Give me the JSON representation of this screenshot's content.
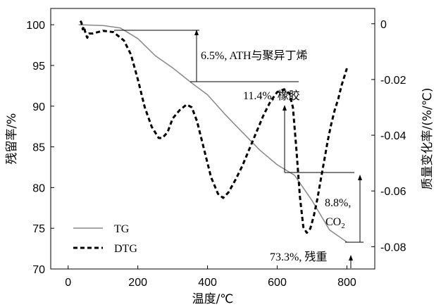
{
  "chart_data": {
    "type": "line",
    "xlabel": "温度/℃",
    "ylabel_left": "残留率/%",
    "ylabel_right": "质量变化率/(%/℃)",
    "xlim": [
      -50,
      880
    ],
    "ylim_left": [
      70,
      102
    ],
    "ylim_right": [
      -0.088,
      0.0055
    ],
    "x_ticks": [
      0,
      200,
      400,
      600,
      800
    ],
    "y_left_ticks": [
      70,
      75,
      80,
      85,
      90,
      95,
      100
    ],
    "y_right_ticks": [
      0,
      -0.02,
      -0.04,
      -0.06,
      -0.08
    ],
    "y_right_tick_labels": [
      "0",
      "-0.02",
      "-0.04",
      "-0.06",
      "-0.08"
    ],
    "grid": false,
    "legend": {
      "position": "bottom-left",
      "entries": [
        {
          "label": "TG",
          "style": "solid",
          "color": "#888888"
        },
        {
          "label": "DTG",
          "style": "dashed",
          "color": "#000000"
        }
      ]
    },
    "series": [
      {
        "name": "TG",
        "axis": "left",
        "color": "#888888",
        "style": "solid",
        "x": [
          30,
          100,
          150,
          200,
          250,
          300,
          350,
          400,
          450,
          500,
          550,
          600,
          650,
          700,
          750,
          800
        ],
        "values": [
          100.0,
          99.9,
          99.6,
          98.3,
          96.2,
          94.7,
          93.0,
          91.4,
          89.0,
          86.8,
          84.6,
          82.8,
          81.5,
          78.4,
          74.8,
          73.3
        ]
      },
      {
        "name": "DTG",
        "axis": "right",
        "color": "#000000",
        "style": "dashed",
        "x": [
          35,
          38,
          42,
          45,
          50,
          55,
          60,
          70,
          100,
          130,
          160,
          180,
          200,
          220,
          240,
          260,
          270,
          285,
          300,
          320,
          340,
          355,
          370,
          390,
          410,
          430,
          445,
          460,
          480,
          500,
          520,
          540,
          560,
          580,
          600,
          620,
          635,
          645,
          655,
          665,
          675,
          685,
          695,
          705,
          715,
          725,
          735,
          745,
          755,
          765,
          775,
          785,
          795,
          800
        ],
        "values": [
          0.001,
          0.0005,
          -0.002,
          -0.001,
          -0.0035,
          -0.005,
          -0.0035,
          -0.0035,
          -0.0025,
          -0.003,
          -0.006,
          -0.011,
          -0.02,
          -0.03,
          -0.037,
          -0.041,
          -0.041,
          -0.039,
          -0.034,
          -0.031,
          -0.029,
          -0.03,
          -0.035,
          -0.045,
          -0.055,
          -0.061,
          -0.0625,
          -0.0605,
          -0.056,
          -0.051,
          -0.045,
          -0.039,
          -0.033,
          -0.028,
          -0.0245,
          -0.0235,
          -0.025,
          -0.03,
          -0.045,
          -0.062,
          -0.073,
          -0.075,
          -0.0735,
          -0.069,
          -0.063,
          -0.056,
          -0.049,
          -0.042,
          -0.036,
          -0.031,
          -0.027,
          -0.022,
          -0.018,
          -0.016
        ]
      }
    ],
    "annotations": {
      "ath": "6.5%, ATH与聚异丁烯",
      "rubber": "11.4%, 橡胶",
      "co2_pct": "8.8%,",
      "co2": "CO",
      "co2_sub": "2",
      "residue": "73.3%, 残重"
    }
  }
}
